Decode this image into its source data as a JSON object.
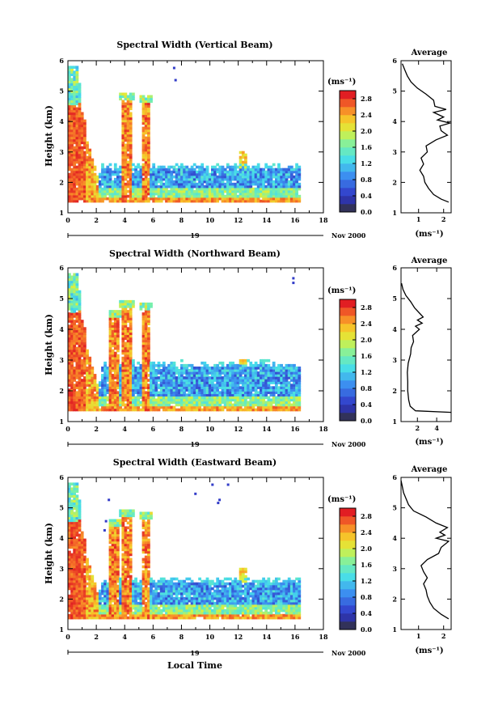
{
  "chart_data": [
    {
      "type": "heatmap",
      "title": "Spectral Width (Vertical Beam)",
      "xlabel": "",
      "ylabel": "Height (km)",
      "xlim": [
        0,
        18
      ],
      "ylim": [
        1,
        6
      ],
      "xticks": [
        "0",
        "2",
        "4",
        "6",
        "8",
        "10",
        "12",
        "14",
        "16",
        "18"
      ],
      "yticks": [
        "1",
        "2",
        "3",
        "4",
        "5",
        "6"
      ],
      "date_day": "19",
      "date_label": "Nov 2000",
      "colorbar": {
        "unit": "(ms⁻¹)",
        "ticks": [
          "2.8",
          "2.4",
          "2.0",
          "1.6",
          "1.2",
          "0.8",
          "0.4",
          "0.0"
        ],
        "range": [
          0,
          3.0
        ]
      },
      "profile": {
        "title": "Average",
        "xlabel": "(ms⁻¹)",
        "xticks": [
          "1",
          "2"
        ],
        "xlim": [
          0.3,
          2.3
        ],
        "heights": [
          1.35,
          1.45,
          1.6,
          1.8,
          2.0,
          2.2,
          2.4,
          2.6,
          2.8,
          3.0,
          3.2,
          3.4,
          3.55,
          3.7,
          3.85,
          3.95,
          4.05,
          4.15,
          4.3,
          4.4,
          4.5,
          4.7,
          4.9,
          5.1,
          5.3,
          5.5,
          5.7,
          5.9
        ],
        "values": [
          2.2,
          1.9,
          1.6,
          1.4,
          1.25,
          1.2,
          1.05,
          1.2,
          1.1,
          1.35,
          1.3,
          1.7,
          2.15,
          1.9,
          1.85,
          2.25,
          1.75,
          2.0,
          1.6,
          2.1,
          1.65,
          1.6,
          1.3,
          0.95,
          0.7,
          0.55,
          0.45,
          0.35
        ]
      }
    },
    {
      "type": "heatmap",
      "title": "Spectral Width (Northward Beam)",
      "xlabel": "",
      "ylabel": "Height (km)",
      "xlim": [
        0,
        18
      ],
      "ylim": [
        1,
        6
      ],
      "xticks": [
        "0",
        "2",
        "4",
        "6",
        "8",
        "10",
        "12",
        "14",
        "16",
        "18"
      ],
      "yticks": [
        "1",
        "2",
        "3",
        "4",
        "5",
        "6"
      ],
      "date_day": "19",
      "date_label": "Nov 2000",
      "colorbar": {
        "unit": "(ms⁻¹)",
        "ticks": [
          "2.8",
          "2.4",
          "2.0",
          "1.6",
          "1.2",
          "0.8",
          "0.4",
          "0.0"
        ],
        "range": [
          0,
          3.0
        ]
      },
      "profile": {
        "title": "Average",
        "xlabel": "(ms⁻¹)",
        "xticks": [
          "2",
          "4"
        ],
        "xlim": [
          0.3,
          5.5
        ],
        "heights": [
          1.3,
          1.35,
          1.5,
          1.7,
          2.0,
          2.3,
          2.6,
          2.9,
          3.2,
          3.4,
          3.6,
          3.8,
          4.0,
          4.1,
          4.2,
          4.3,
          4.4,
          4.5,
          4.7,
          4.9,
          5.1,
          5.3,
          5.5
        ],
        "values": [
          5.5,
          1.8,
          1.25,
          1.1,
          1.0,
          1.0,
          0.95,
          1.05,
          1.3,
          1.35,
          1.6,
          1.5,
          2.2,
          1.8,
          2.5,
          2.0,
          2.6,
          2.3,
          1.7,
          1.3,
          0.8,
          0.5,
          0.35
        ]
      }
    },
    {
      "type": "heatmap",
      "title": "Spectral Width (Eastward Beam)",
      "xlabel": "Local Time",
      "ylabel": "Height (km)",
      "xlim": [
        0,
        18
      ],
      "ylim": [
        1,
        6
      ],
      "xticks": [
        "0",
        "2",
        "4",
        "6",
        "8",
        "10",
        "12",
        "14",
        "16",
        "18"
      ],
      "yticks": [
        "1",
        "2",
        "3",
        "4",
        "5",
        "6"
      ],
      "date_day": "19",
      "date_label": "Nov 2000",
      "colorbar": {
        "unit": "(ms⁻¹)",
        "ticks": [
          "2.8",
          "2.4",
          "2.0",
          "1.6",
          "1.2",
          "0.8",
          "0.4",
          "0.0"
        ],
        "range": [
          0,
          3.0
        ]
      },
      "profile": {
        "title": "Average",
        "xlabel": "(ms⁻¹)",
        "xticks": [
          "1",
          "2"
        ],
        "xlim": [
          0.3,
          2.3
        ],
        "heights": [
          1.35,
          1.5,
          1.7,
          1.9,
          2.1,
          2.3,
          2.5,
          2.7,
          2.9,
          3.1,
          3.3,
          3.5,
          3.7,
          3.9,
          4.0,
          4.1,
          4.2,
          4.35,
          4.5,
          4.7,
          4.9,
          5.1,
          5.3,
          5.5,
          5.7,
          5.9
        ],
        "values": [
          2.2,
          1.9,
          1.6,
          1.45,
          1.35,
          1.3,
          1.2,
          1.35,
          1.2,
          1.1,
          1.35,
          1.8,
          1.9,
          2.2,
          1.7,
          2.05,
          1.85,
          2.15,
          1.7,
          1.3,
          0.8,
          0.6,
          0.5,
          0.4,
          0.35,
          0.3
        ]
      }
    }
  ]
}
